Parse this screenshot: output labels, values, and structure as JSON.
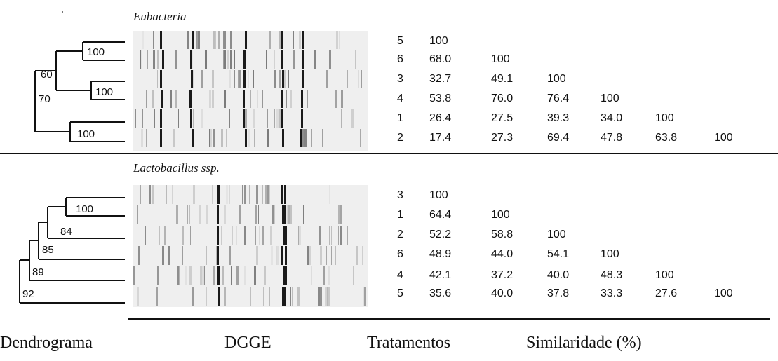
{
  "panels": [
    {
      "title": "Eubacteria",
      "treatments": [
        "5",
        "6",
        "3",
        "4",
        "1",
        "2"
      ],
      "bootstrap": [
        "100",
        "60",
        "100",
        "70",
        "100"
      ],
      "matrix": [
        [
          "100"
        ],
        [
          "68.0",
          "100"
        ],
        [
          "32.7",
          "49.1",
          "100"
        ],
        [
          "53.8",
          "76.0",
          "76.4",
          "100"
        ],
        [
          "26.4",
          "27.5",
          "39.3",
          "34.0",
          "100"
        ],
        [
          "17.4",
          "27.3",
          "69.4",
          "47.8",
          "63.8",
          "100"
        ]
      ]
    },
    {
      "title": "Lactobacillus ssp.",
      "treatments": [
        "3",
        "1",
        "2",
        "6",
        "4",
        "5"
      ],
      "bootstrap": [
        "100",
        "84",
        "85",
        "89",
        "92"
      ],
      "matrix": [
        [
          "100"
        ],
        [
          "64.4",
          "100"
        ],
        [
          "52.2",
          "58.8",
          "100"
        ],
        [
          "48.9",
          "44.0",
          "54.1",
          "100"
        ],
        [
          "42.1",
          "37.2",
          "40.0",
          "48.3",
          "100"
        ],
        [
          "35.6",
          "40.0",
          "37.8",
          "33.3",
          "27.6",
          "100"
        ]
      ]
    }
  ],
  "footer": {
    "dendrogram": "Dendrograma",
    "dgge": "DGGE",
    "treatments": "Tratamentos",
    "similarity": "Similaridade (%)"
  }
}
